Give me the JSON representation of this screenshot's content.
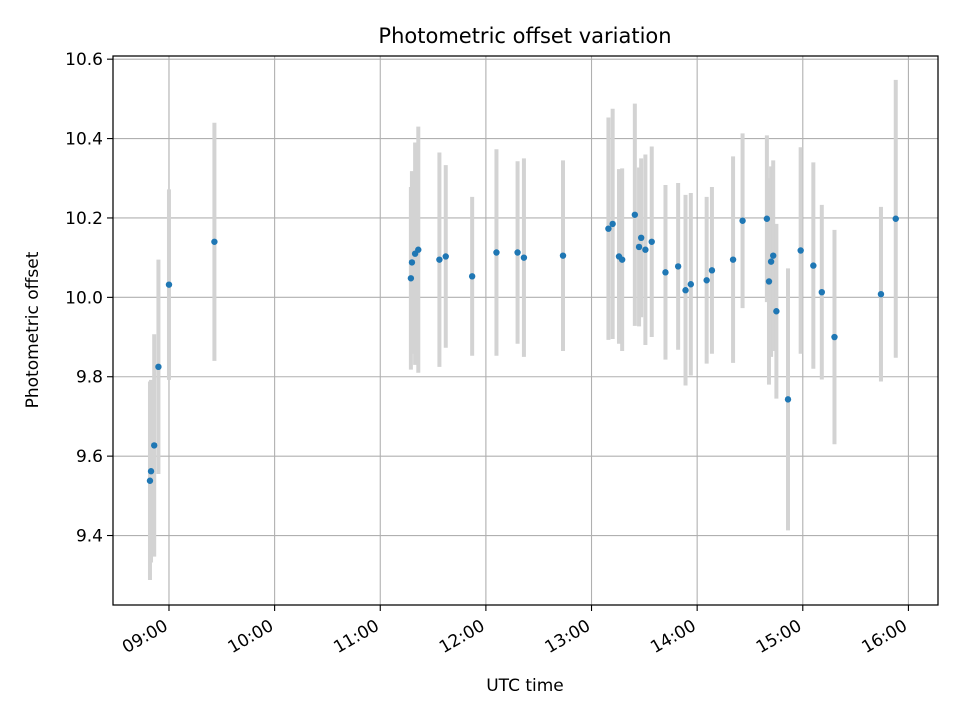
{
  "chart_data": {
    "type": "scatter",
    "title": "Photometric offset variation",
    "xlabel": "UTC time",
    "ylabel": "Photometric offset",
    "x_unit": "UTC hour of day",
    "xlim": [
      8.47,
      16.28
    ],
    "ylim": [
      9.225,
      10.608
    ],
    "grid": true,
    "x_tick_values": [
      9,
      10,
      11,
      12,
      13,
      14,
      15,
      16
    ],
    "x_tick_labels": [
      "09:00",
      "10:00",
      "11:00",
      "12:00",
      "13:00",
      "14:00",
      "15:00",
      "16:00"
    ],
    "y_tick_values": [
      9.4,
      9.6,
      9.8,
      10.0,
      10.2,
      10.4,
      10.6
    ],
    "y_tick_labels": [
      "9.4",
      "9.6",
      "9.8",
      "10.0",
      "10.2",
      "10.4",
      "10.6"
    ],
    "colors": {
      "point": "#1f77b4",
      "errorbar": "#d3d3d3",
      "grid": "#b0b0b0"
    },
    "series": [
      {
        "x": [
          8.82,
          8.83,
          8.86,
          8.9,
          9.0,
          9.43,
          11.29,
          11.3,
          11.33,
          11.36,
          11.56,
          11.62,
          11.87,
          12.1,
          12.3,
          12.36,
          12.73,
          13.16,
          13.2,
          13.26,
          13.29,
          13.41,
          13.45,
          13.47,
          13.51,
          13.57,
          13.7,
          13.82,
          13.89,
          13.94,
          14.09,
          14.14,
          14.34,
          14.43,
          14.66,
          14.68,
          14.7,
          14.72,
          14.75,
          14.86,
          14.98,
          15.1,
          15.18,
          15.3,
          15.74,
          15.88
        ],
        "y": [
          9.538,
          9.562,
          9.627,
          9.825,
          10.032,
          10.14,
          10.048,
          10.088,
          10.11,
          10.12,
          10.095,
          10.103,
          10.053,
          10.113,
          10.113,
          10.1,
          10.105,
          10.173,
          10.185,
          10.103,
          10.095,
          10.208,
          10.127,
          10.15,
          10.12,
          10.14,
          10.063,
          10.078,
          10.018,
          10.033,
          10.043,
          10.068,
          10.095,
          10.193,
          10.198,
          10.04,
          10.09,
          10.105,
          9.965,
          9.743,
          10.118,
          10.08,
          10.013,
          9.9,
          10.008,
          10.198
        ],
        "err": [
          0.25,
          0.23,
          0.28,
          0.27,
          0.24,
          0.3,
          0.23,
          0.23,
          0.28,
          0.31,
          0.27,
          0.23,
          0.2,
          0.26,
          0.23,
          0.25,
          0.24,
          0.28,
          0.29,
          0.22,
          0.23,
          0.28,
          0.2,
          0.2,
          0.24,
          0.24,
          0.22,
          0.21,
          0.24,
          0.23,
          0.21,
          0.21,
          0.26,
          0.22,
          0.21,
          0.26,
          0.24,
          0.24,
          0.22,
          0.33,
          0.26,
          0.26,
          0.22,
          0.27,
          0.22,
          0.35
        ]
      }
    ]
  }
}
